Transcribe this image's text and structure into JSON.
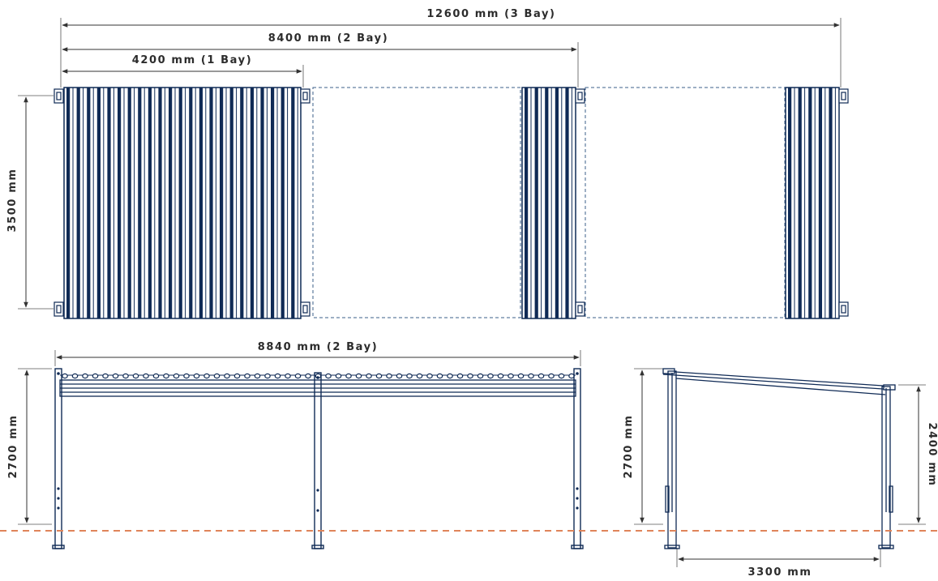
{
  "colors": {
    "structure": "#0f2a55",
    "dimension": "#333333",
    "ground_line": "#e0845a",
    "empty_bay_outline": "#3b5f8a"
  },
  "plan_view": {
    "dim_3_bay": "12600 mm (3 Bay)",
    "dim_2_bay": "8400 mm (2 Bay)",
    "dim_1_bay": "4200 mm (1 Bay)",
    "depth": "3500 mm"
  },
  "front_elevation": {
    "width": "8840 mm (2 Bay)",
    "height": "2700 mm"
  },
  "side_elevation": {
    "front_height": "2700 mm",
    "rear_height": "2400 mm",
    "projection": "3300 mm"
  }
}
